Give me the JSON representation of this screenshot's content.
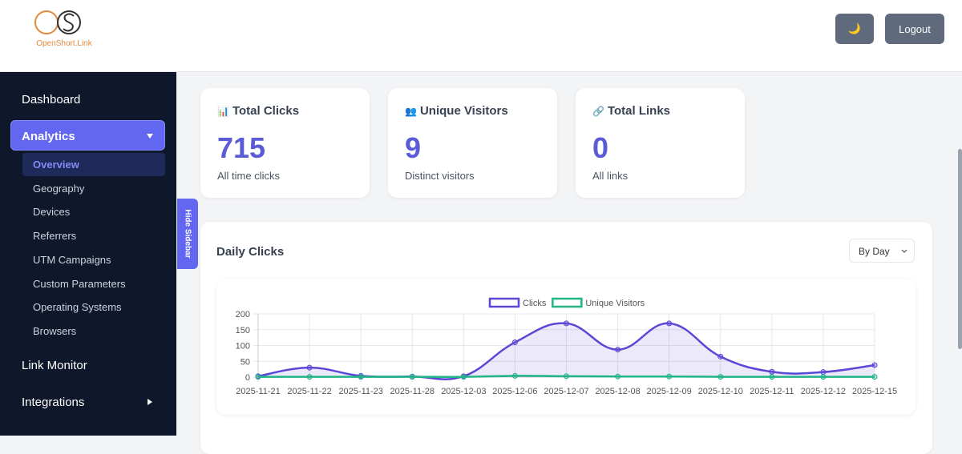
{
  "header": {
    "logo_text": "OpenShort.Link",
    "theme_button": "🌙",
    "logout_button": "Logout"
  },
  "sidebar": {
    "items": [
      {
        "label": "Dashboard"
      },
      {
        "label": "Analytics",
        "active": true,
        "expanded": true,
        "children": [
          "Overview",
          "Geography",
          "Devices",
          "Referrers",
          "UTM Campaigns",
          "Custom Parameters",
          "Operating Systems",
          "Browsers"
        ]
      },
      {
        "label": "Link Monitor"
      },
      {
        "label": "Integrations",
        "expanded": false
      }
    ],
    "hide_button": "Hide Sidebar"
  },
  "stats": [
    {
      "icon": "📊",
      "title": "Total Clicks",
      "value": 715,
      "caption": "All time clicks"
    },
    {
      "icon": "👥",
      "title": "Unique Visitors",
      "value": 9,
      "caption": "Distinct visitors"
    },
    {
      "icon": "🔗",
      "title": "Total Links",
      "value": 0,
      "caption": "All links"
    }
  ],
  "chart_panel": {
    "title": "Daily Clicks",
    "select": "By Day"
  },
  "chart_data": {
    "type": "line",
    "categories": [
      "2025-11-21",
      "2025-11-22",
      "2025-11-23",
      "2025-11-28",
      "2025-12-03",
      "2025-12-06",
      "2025-12-07",
      "2025-12-08",
      "2025-12-09",
      "2025-12-10",
      "2025-12-11",
      "2025-12-12",
      "2025-12-15"
    ],
    "series": [
      {
        "name": "Clicks",
        "color": "#5b47d6",
        "fill": true,
        "values": [
          3,
          30,
          4,
          2,
          3,
          110,
          170,
          87,
          170,
          65,
          17,
          16,
          38
        ]
      },
      {
        "name": "Unique Visitors",
        "color": "#20b486",
        "fill": false,
        "values": [
          1,
          1,
          1,
          1,
          1,
          4,
          3,
          2,
          2,
          1,
          1,
          1,
          1
        ]
      }
    ],
    "ylim": [
      0,
      200
    ],
    "yticks": [
      0,
      50,
      100,
      150,
      200
    ],
    "grid": true
  }
}
